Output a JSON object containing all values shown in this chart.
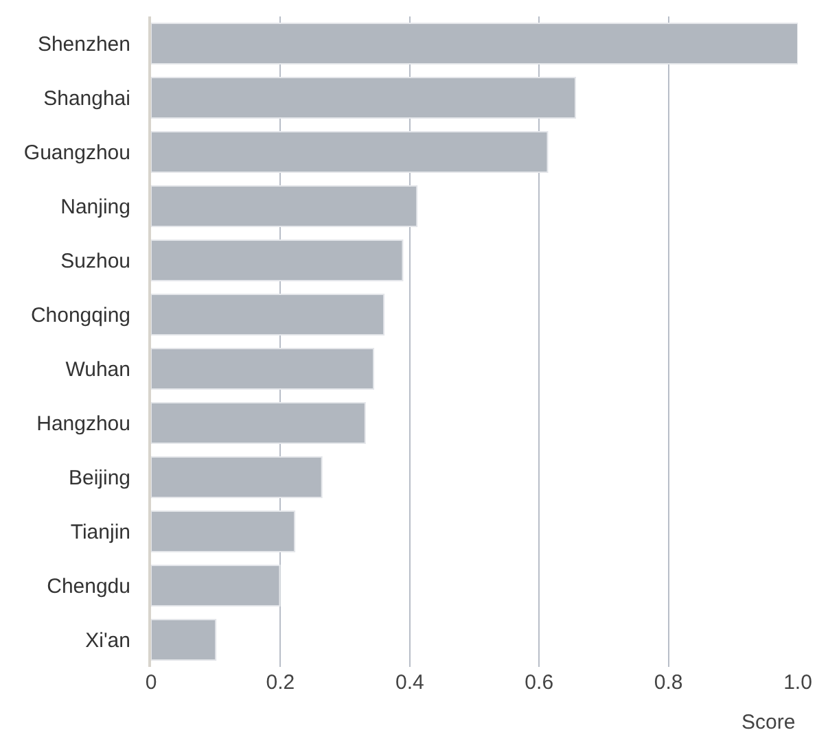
{
  "chart_data": {
    "type": "bar",
    "orientation": "horizontal",
    "xlabel": "Score",
    "categories": [
      "Shenzhen",
      "Shanghai",
      "Guangzhou",
      "Nanjing",
      "Suzhou",
      "Chongqing",
      "Wuhan",
      "Hangzhou",
      "Beijing",
      "Tianjin",
      "Chengdu",
      "Xi'an"
    ],
    "values": [
      1.0,
      0.656,
      0.613,
      0.411,
      0.389,
      0.36,
      0.344,
      0.331,
      0.264,
      0.222,
      0.199,
      0.1
    ],
    "color": "#b1b7bf",
    "xlim": [
      0,
      1.0
    ],
    "xticks": [
      0,
      0.2,
      0.4,
      0.6,
      0.8,
      {
        "value": 1.0,
        "label": "1.0"
      }
    ],
    "grid": "x"
  }
}
